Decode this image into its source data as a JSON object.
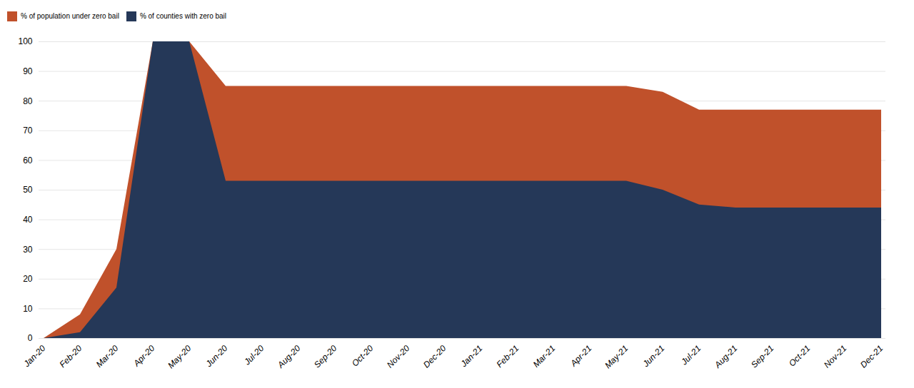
{
  "chart_data": {
    "type": "area",
    "categories": [
      "Jan-20",
      "Feb-20",
      "Mar-20",
      "Apr-20",
      "May-20",
      "Jun-20",
      "Jul-20",
      "Aug-20",
      "Sep-20",
      "Oct-20",
      "Nov-20",
      "Dec-20",
      "Jan-21",
      "Feb-21",
      "Mar-21",
      "Apr-21",
      "May-21",
      "Jun-21",
      "Jul-21",
      "Aug-21",
      "Sep-21",
      "Oct-21",
      "Nov-21",
      "Dec-21"
    ],
    "series": [
      {
        "name": "% of population under zero bail",
        "color": "#c0512b",
        "values": [
          0,
          8,
          30,
          100,
          100,
          85,
          85,
          85,
          85,
          85,
          85,
          85,
          85,
          85,
          85,
          85,
          85,
          83,
          77,
          77,
          77,
          77,
          77,
          77
        ]
      },
      {
        "name": "% of counties with zero bail",
        "color": "#253858",
        "values": [
          0,
          2,
          17,
          100,
          100,
          53,
          53,
          53,
          53,
          53,
          53,
          53,
          53,
          53,
          53,
          53,
          53,
          50,
          45,
          44,
          44,
          44,
          44,
          44
        ]
      }
    ],
    "ylim": [
      0,
      100
    ],
    "yticks": [
      0,
      10,
      20,
      30,
      40,
      50,
      60,
      70,
      80,
      90,
      100
    ],
    "grid": true,
    "legend": "top-left"
  }
}
